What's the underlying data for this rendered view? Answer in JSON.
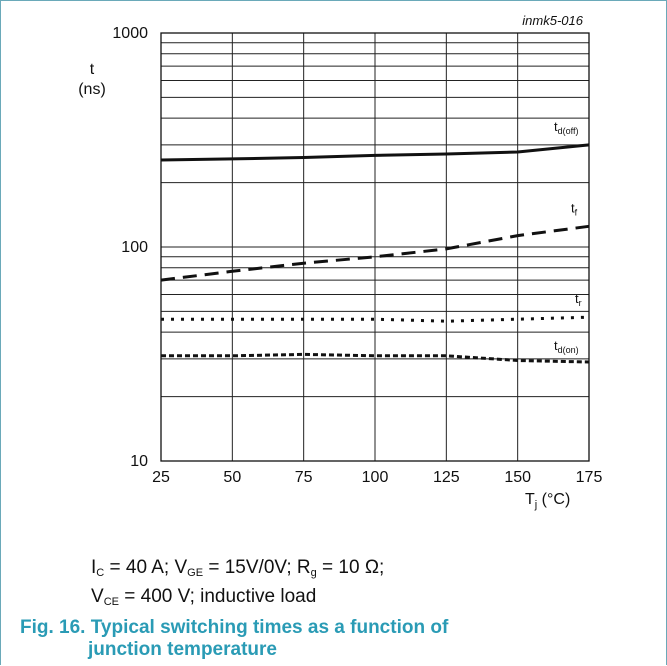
{
  "figure_code": "inmk5-016",
  "conditions": {
    "line1": {
      "i_c": "I",
      "i_c_sub": "C",
      "i_c_val": " = 40 A; ",
      "v_ge": "V",
      "v_ge_sub": "GE",
      "v_ge_val": " = 15V/0V; ",
      "r_g": "R",
      "r_g_sub": "g",
      "r_g_val": " = 10 Ω;"
    },
    "line2": {
      "v_ce": "V",
      "v_ce_sub": "CE",
      "v_ce_val": " = 400 V; inductive load"
    }
  },
  "caption": {
    "line1": "Fig. 16. Typical switching times as a function of",
    "line2": "junction temperature"
  },
  "chart_data": {
    "type": "line",
    "ylabel": "t",
    "ylabel_unit": "(ns)",
    "xlabel": "T",
    "xlabel_sub": "j",
    "xlabel_unit": " (°C)",
    "x_scale": "linear",
    "y_scale": "log",
    "xlim": [
      25,
      175
    ],
    "ylim": [
      10,
      1000
    ],
    "x_ticks": [
      "25",
      "50",
      "75",
      "100",
      "125",
      "150",
      "175"
    ],
    "y_ticks": [
      "10",
      "100",
      "1000"
    ],
    "grid": true,
    "series": [
      {
        "name": "t",
        "sub": "d(off)",
        "style": "solid",
        "x": [
          25,
          50,
          75,
          100,
          125,
          150,
          175
        ],
        "values": [
          255,
          258,
          262,
          268,
          272,
          278,
          300
        ]
      },
      {
        "name": "t",
        "sub": "f",
        "style": "dashed",
        "x": [
          25,
          50,
          75,
          100,
          125,
          150,
          175
        ],
        "values": [
          70,
          77,
          84,
          90,
          98,
          113,
          125
        ]
      },
      {
        "name": "t",
        "sub": "r",
        "style": "dotted",
        "x": [
          25,
          50,
          75,
          100,
          125,
          150,
          175
        ],
        "values": [
          46,
          46,
          46,
          46,
          45,
          46,
          47
        ]
      },
      {
        "name": "t",
        "sub": "d(on)",
        "style": "dense-dash",
        "x": [
          25,
          50,
          75,
          100,
          125,
          150,
          175
        ],
        "values": [
          31,
          31,
          31.5,
          31,
          31,
          29.5,
          29
        ]
      }
    ]
  }
}
